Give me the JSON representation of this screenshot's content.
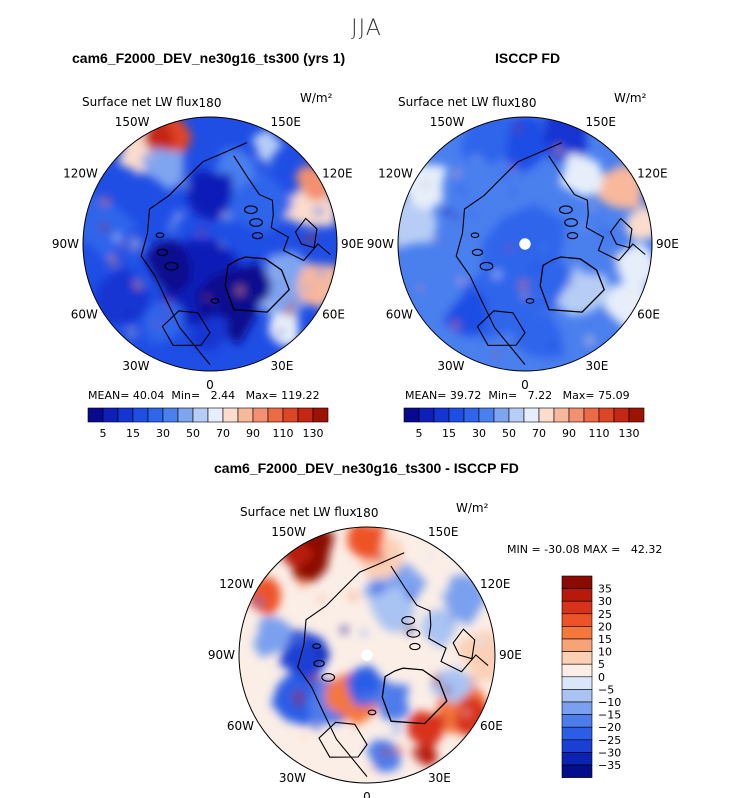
{
  "figure": {
    "season": "JJA"
  },
  "panels": [
    {
      "title": "cam6_F2000_DEV_ne30g16_ts300 (yrs 1)",
      "variable": "Surface net LW flux",
      "units": "W/m²",
      "lon_labels": [
        "180",
        "150E",
        "120E",
        "90E",
        "60E",
        "30E",
        "0",
        "30W",
        "60W",
        "90W",
        "120W",
        "150W"
      ],
      "stats": {
        "mean_label": "MEAN=",
        "mean": "40.04",
        "min_label": "Min=",
        "min": "2.44",
        "max_label": "Max=",
        "max": "119.22"
      },
      "colorbar_ticks": [
        "5",
        "15",
        "30",
        "50",
        "70",
        "90",
        "110",
        "130"
      ]
    },
    {
      "title": "ISCCP FD",
      "variable": "Surface net LW flux",
      "units": "W/m²",
      "lon_labels": [
        "180",
        "150E",
        "120E",
        "90E",
        "60E",
        "30E",
        "0",
        "30W",
        "60W",
        "90W",
        "120W",
        "150W"
      ],
      "stats": {
        "mean_label": "MEAN=",
        "mean": "39.72",
        "min_label": "Min=",
        "min": "7.22",
        "max_label": "Max=",
        "max": "75.09"
      },
      "colorbar_ticks": [
        "5",
        "15",
        "30",
        "50",
        "70",
        "90",
        "110",
        "130"
      ]
    },
    {
      "title": "cam6_F2000_DEV_ne30g16_ts300 - ISCCP FD",
      "variable": "Surface net LW flux",
      "units": "W/m²",
      "lon_labels": [
        "180",
        "150E",
        "120E",
        "90E",
        "60E",
        "30E",
        "0",
        "30W",
        "60W",
        "90W",
        "120W",
        "150W"
      ],
      "stats_text": "MIN = -30.08 MAX =   42.32",
      "colorbar_ticks": [
        "35",
        "30",
        "25",
        "20",
        "15",
        "10",
        "5",
        "0",
        "−5",
        "−10",
        "−15",
        "−20",
        "−25",
        "−30",
        "−35"
      ]
    }
  ],
  "chart_data": [
    {
      "type": "heatmap",
      "projection": "north polar stereographic",
      "title": "cam6_F2000_DEV_ne30g16_ts300 (yrs 1)",
      "variable": "Surface net LW flux",
      "units": "W/m²",
      "season": "JJA",
      "mean": 40.04,
      "min": 2.44,
      "max": 119.22,
      "contour_levels": [
        5,
        10,
        15,
        20,
        30,
        40,
        50,
        60,
        70,
        80,
        90,
        100,
        110,
        120,
        130
      ],
      "colorbar_tick_labels": [
        5,
        15,
        30,
        50,
        70,
        90,
        110,
        130
      ]
    },
    {
      "type": "heatmap",
      "projection": "north polar stereographic",
      "title": "ISCCP FD",
      "variable": "Surface net LW flux",
      "units": "W/m²",
      "season": "JJA",
      "mean": 39.72,
      "min": 7.22,
      "max": 75.09,
      "contour_levels": [
        5,
        10,
        15,
        20,
        30,
        40,
        50,
        60,
        70,
        80,
        90,
        100,
        110,
        120,
        130
      ],
      "colorbar_tick_labels": [
        5,
        15,
        30,
        50,
        70,
        90,
        110,
        130
      ]
    },
    {
      "type": "heatmap",
      "projection": "north polar stereographic",
      "title": "cam6_F2000_DEV_ne30g16_ts300 - ISCCP FD",
      "variable": "Surface net LW flux",
      "units": "W/m²",
      "season": "JJA",
      "min": -30.08,
      "max": 42.32,
      "contour_levels": [
        -35,
        -30,
        -25,
        -20,
        -15,
        -10,
        -5,
        0,
        5,
        10,
        15,
        20,
        25,
        30,
        35
      ],
      "colorbar_tick_labels": [
        35,
        30,
        25,
        20,
        15,
        10,
        5,
        0,
        -5,
        -10,
        -15,
        -20,
        -25,
        -30,
        -35
      ]
    }
  ],
  "colors": {
    "seq": [
      "#08098f",
      "#0d1fb8",
      "#1535d2",
      "#1f4ee5",
      "#2e65eb",
      "#4a7fee",
      "#7fa4f0",
      "#b7cdf5",
      "#e6eefa",
      "#fbdccd",
      "#f8b89c",
      "#f3906f",
      "#ec6a46",
      "#de4526",
      "#c42712",
      "#9c1306"
    ],
    "div": [
      "#8b0a02",
      "#b81a09",
      "#d8321a",
      "#ee5327",
      "#f4773c",
      "#f7a277",
      "#fbd0b5",
      "#fbeee7",
      "#dbe6fa",
      "#a9c3f3",
      "#7aa0ef",
      "#4d7ceb",
      "#2c5de6",
      "#1a3fd3",
      "#0b22b2",
      "#050e8a"
    ],
    "land": "#000000"
  }
}
